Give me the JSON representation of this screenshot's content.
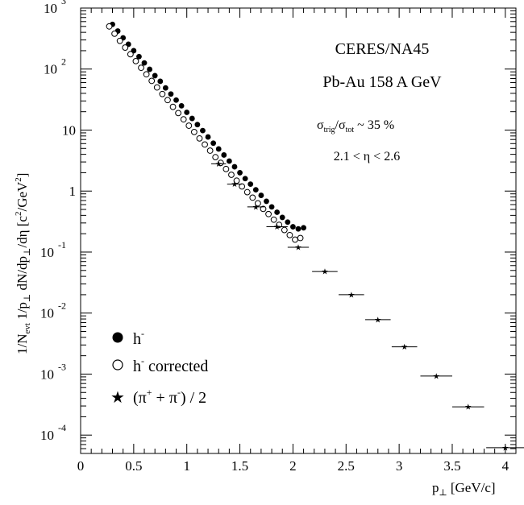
{
  "chart_data": {
    "type": "scatter",
    "title": "",
    "xlabel_main": "p",
    "xlabel_sub": "⊥",
    "xlabel_unit": "[GeV/c]",
    "ylabel_parts": {
      "p1": "1/N",
      "p1_sub": "evt",
      "p2": " 1/p",
      "p2_sub": "⊥",
      "p3": " dN/dp",
      "p3_sub": "⊥",
      "p4": "/dη [c",
      "p4_sup": "2",
      "p5": "/GeV",
      "p5_sup": "2",
      "p6": "]"
    },
    "xlim": [
      0,
      4.1
    ],
    "ylim": [
      5e-05,
      1000
    ],
    "y_scale": "log",
    "x_ticks": [
      {
        "v": 0,
        "label": "0"
      },
      {
        "v": 0.5,
        "label": "0.5"
      },
      {
        "v": 1,
        "label": "1"
      },
      {
        "v": 1.5,
        "label": "1.5"
      },
      {
        "v": 2,
        "label": "2"
      },
      {
        "v": 2.5,
        "label": "2.5"
      },
      {
        "v": 3,
        "label": "3"
      },
      {
        "v": 3.5,
        "label": "3.5"
      },
      {
        "v": 4,
        "label": "4"
      }
    ],
    "y_ticks": [
      {
        "v": 1000,
        "base": "10",
        "exp": "3"
      },
      {
        "v": 100,
        "base": "10",
        "exp": "2"
      },
      {
        "v": 10,
        "base": "10",
        "exp": ""
      },
      {
        "v": 1,
        "base": "1",
        "exp": ""
      },
      {
        "v": 0.1,
        "base": "10",
        "exp": "-1"
      },
      {
        "v": 0.01,
        "base": "10",
        "exp": "-2"
      },
      {
        "v": 0.001,
        "base": "10",
        "exp": "-3"
      },
      {
        "v": 0.0001,
        "base": "10",
        "exp": "-4"
      }
    ],
    "annotations": [
      {
        "id": "experiment",
        "text": "CERES/NA45"
      },
      {
        "id": "system",
        "text": "Pb-Au 158 A GeV"
      },
      {
        "id": "centrality",
        "s1": "σ",
        "s1_sub": "trig",
        "mid": "/",
        "s2": "σ",
        "s2_sub": "tot",
        "tail": " ~ 35 %"
      },
      {
        "id": "eta-range",
        "text": "2.1 < η < 2.6"
      }
    ],
    "series": [
      {
        "name": "h",
        "legend_sup": "-",
        "legend_tail": "",
        "marker": "filled-circle",
        "x": [
          0.3,
          0.35,
          0.4,
          0.45,
          0.5,
          0.55,
          0.6,
          0.65,
          0.7,
          0.75,
          0.8,
          0.85,
          0.9,
          0.95,
          1.0,
          1.05,
          1.1,
          1.15,
          1.2,
          1.25,
          1.3,
          1.35,
          1.4,
          1.45,
          1.5,
          1.55,
          1.6,
          1.65,
          1.7,
          1.75,
          1.8,
          1.85,
          1.9,
          1.95,
          2.0,
          2.05,
          2.1
        ],
        "y": [
          540,
          420,
          325,
          255,
          200,
          160,
          126,
          99,
          78,
          63,
          49,
          39,
          31,
          25,
          19.5,
          15.5,
          12.3,
          9.8,
          7.7,
          6.1,
          4.9,
          3.9,
          3.1,
          2.5,
          2.0,
          1.6,
          1.3,
          1.05,
          0.85,
          0.68,
          0.55,
          0.45,
          0.37,
          0.31,
          0.26,
          0.24,
          0.25
        ]
      },
      {
        "name": "h",
        "legend_sup": "-",
        "legend_tail": " corrected",
        "marker": "open-circle",
        "x": [
          0.3,
          0.35,
          0.4,
          0.45,
          0.5,
          0.55,
          0.6,
          0.65,
          0.7,
          0.75,
          0.8,
          0.85,
          0.9,
          0.95,
          1.0,
          1.05,
          1.1,
          1.15,
          1.2,
          1.25,
          1.3,
          1.35,
          1.4,
          1.45,
          1.5,
          1.55,
          1.6,
          1.65,
          1.7,
          1.75,
          1.8,
          1.85,
          1.9,
          1.95,
          2.0,
          2.05,
          2.1
        ],
        "y": [
          500,
          380,
          290,
          225,
          175,
          135,
          105,
          82,
          64,
          50,
          39,
          31,
          24,
          19,
          15,
          11.8,
          9.3,
          7.3,
          5.8,
          4.6,
          3.6,
          2.9,
          2.3,
          1.85,
          1.48,
          1.19,
          0.96,
          0.78,
          0.63,
          0.51,
          0.42,
          0.34,
          0.28,
          0.23,
          0.19,
          0.16,
          0.17
        ]
      },
      {
        "name": "(π",
        "legend_sup": "+",
        "legend_mid": " + π",
        "legend_sup2": "-",
        "legend_tail": ") / 2",
        "marker": "star",
        "x": [
          1.3,
          1.45,
          1.65,
          1.85,
          2.05,
          2.3,
          2.55,
          2.8,
          3.05,
          3.35,
          3.65,
          4.0
        ],
        "y": [
          2.8,
          1.3,
          0.55,
          0.26,
          0.12,
          0.048,
          0.02,
          0.0078,
          0.0028,
          0.00093,
          0.00029,
          6.2e-05
        ],
        "xerr": [
          0.07,
          0.07,
          0.08,
          0.1,
          0.1,
          0.12,
          0.12,
          0.12,
          0.12,
          0.15,
          0.15,
          0.18
        ]
      }
    ],
    "legend_position": "bottom-left"
  }
}
